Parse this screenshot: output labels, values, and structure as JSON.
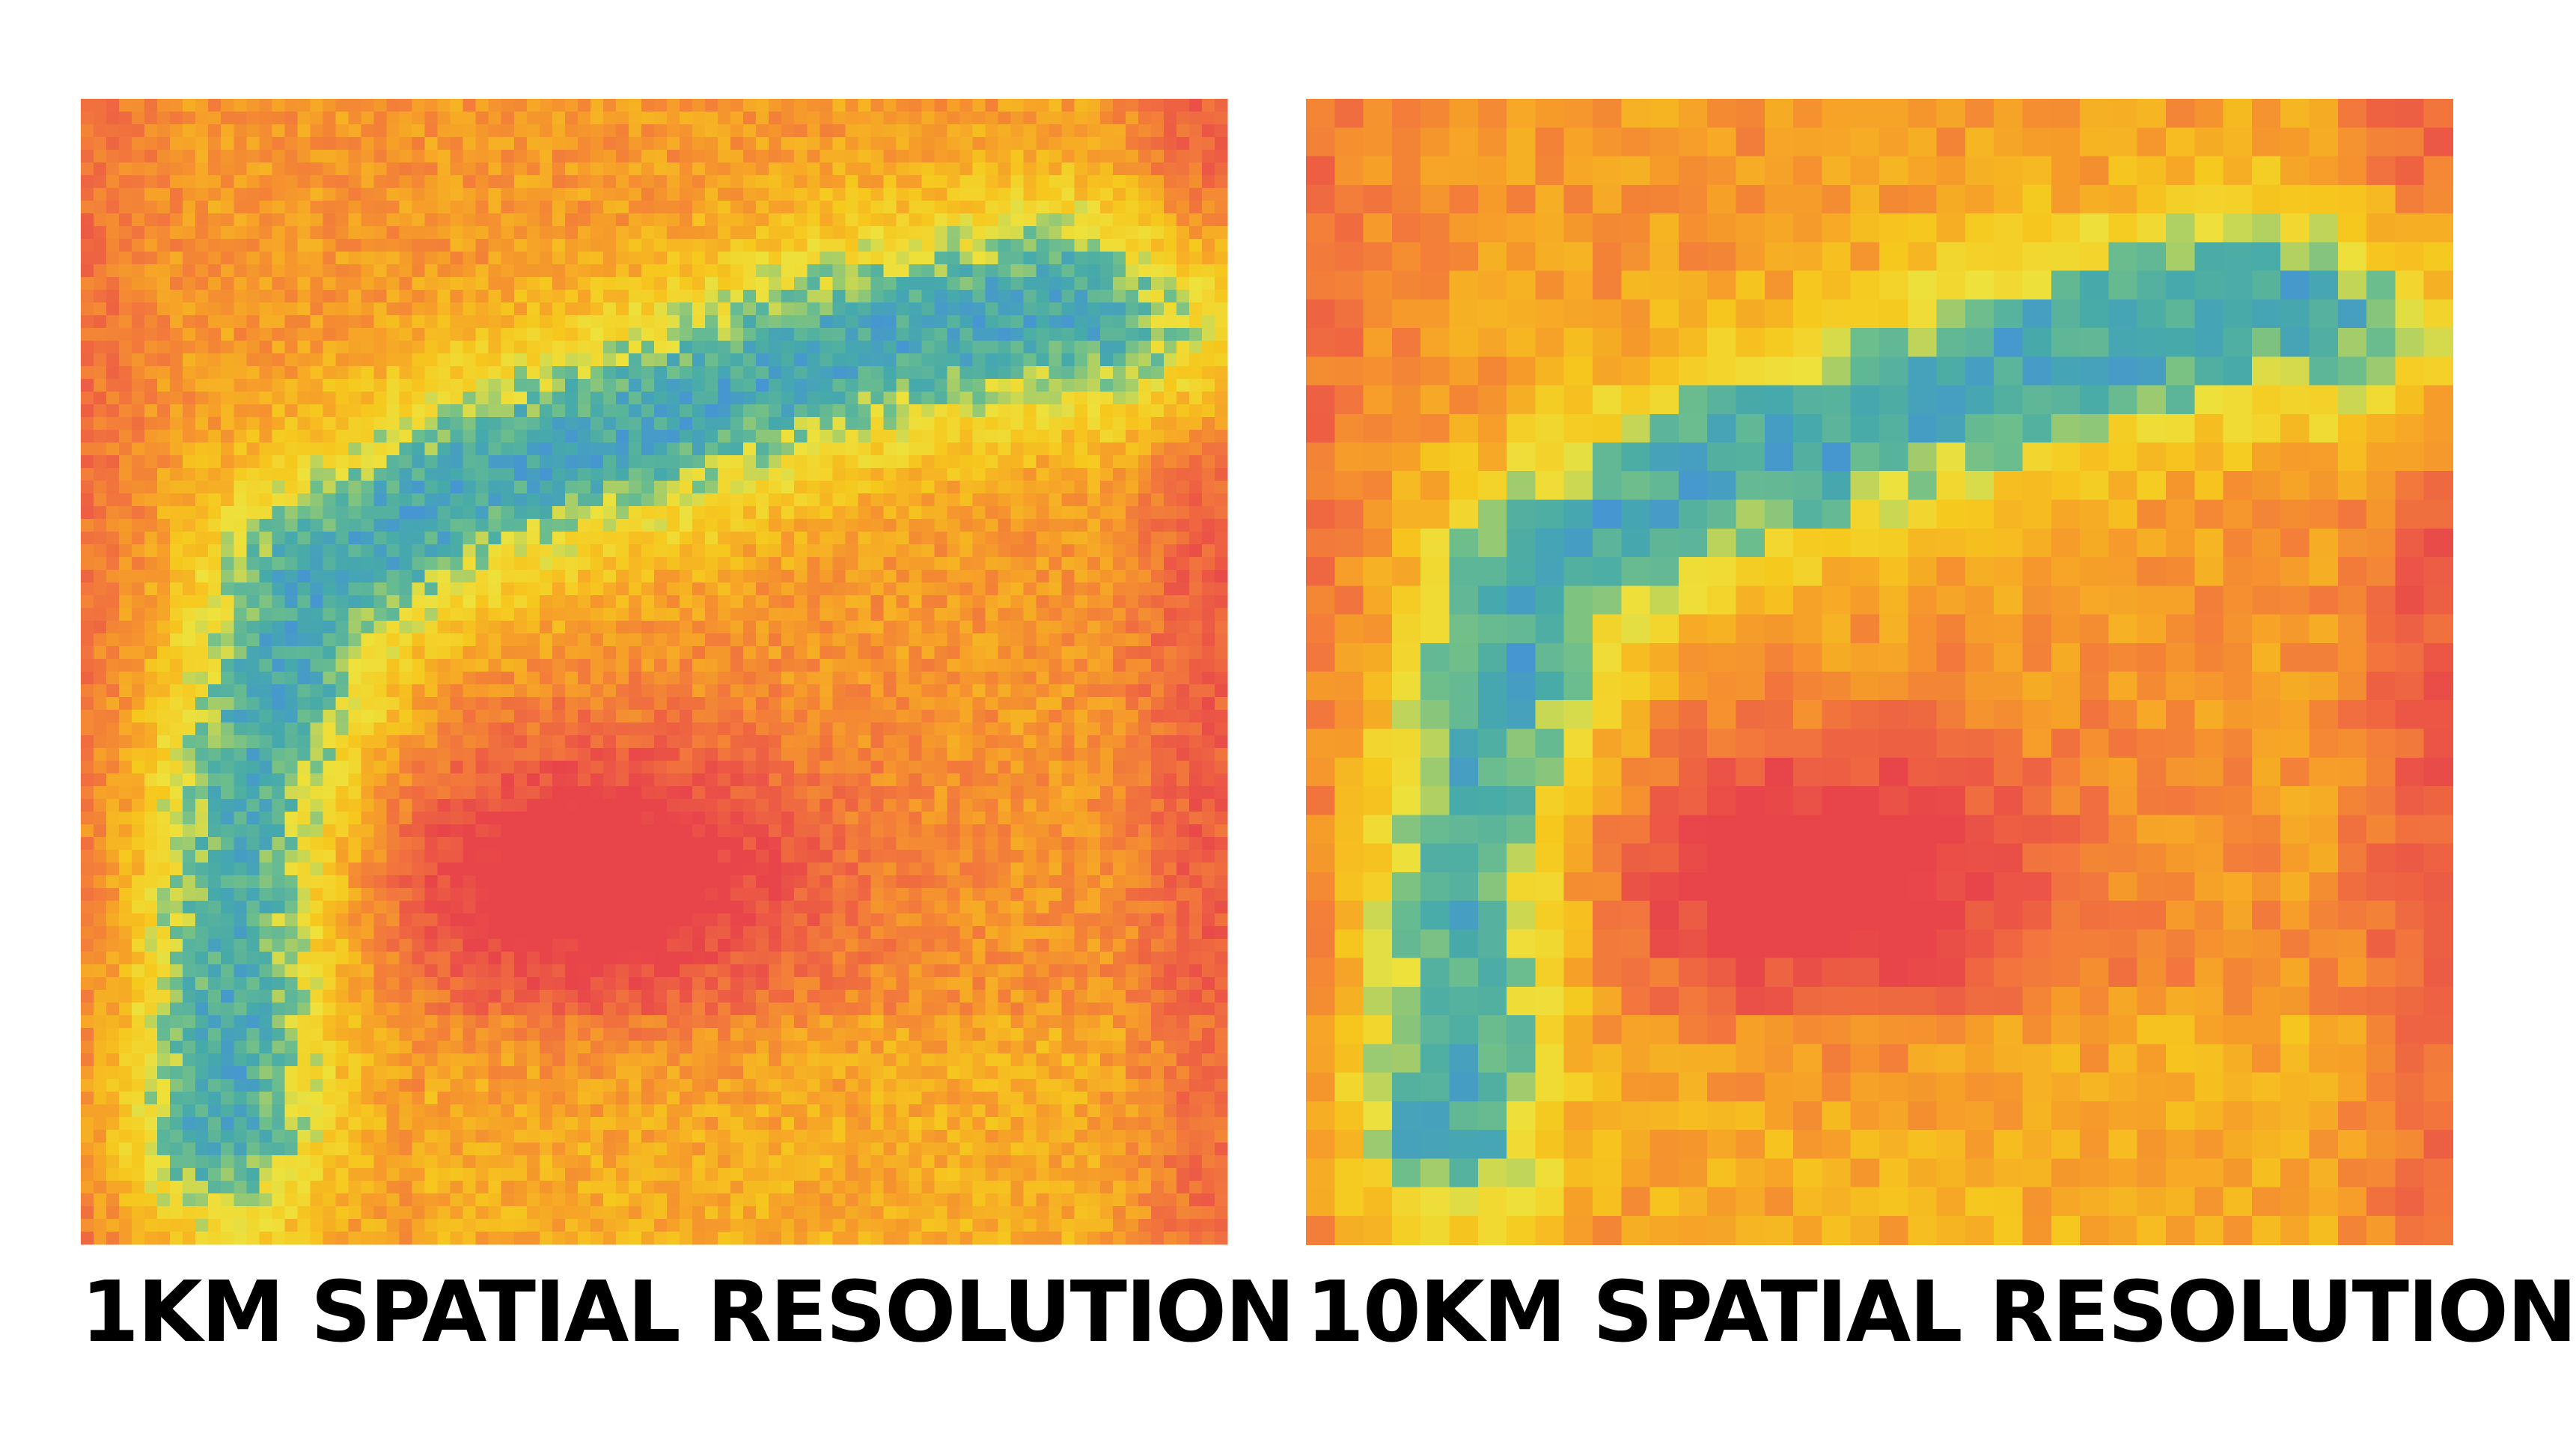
{
  "panels": [
    {
      "caption": "1KM SPATIAL RESOLUTION"
    },
    {
      "caption": "10KM SPATIAL RESOLUTION"
    }
  ]
}
